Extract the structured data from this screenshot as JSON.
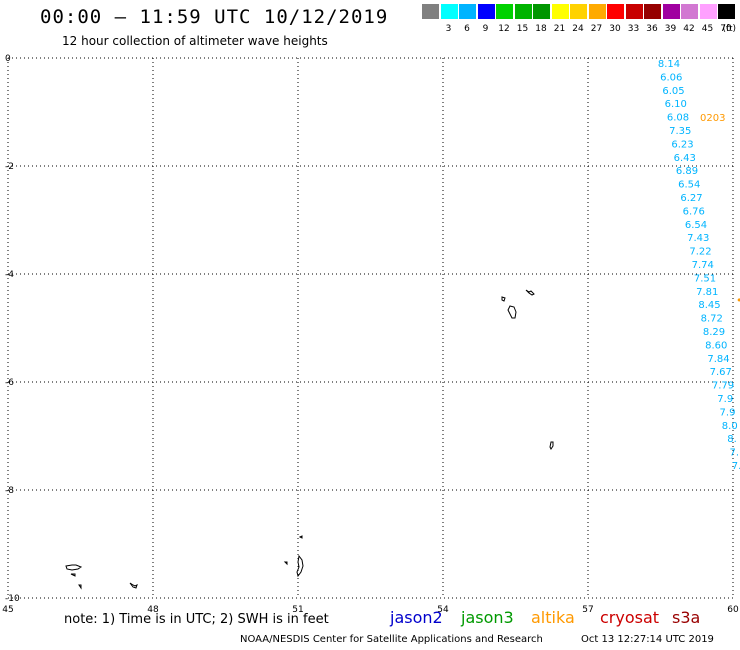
{
  "header": {
    "title": "00:00 – 11:59 UTC 10/12/2019",
    "subtitle": "12 hour collection of altimeter wave heights"
  },
  "color_scale": {
    "unit": "(ft)",
    "items": [
      {
        "label": "",
        "color": "#808080"
      },
      {
        "label": "3",
        "color": "#00ffff"
      },
      {
        "label": "6",
        "color": "#00b4ff"
      },
      {
        "label": "9",
        "color": "#0000ff"
      },
      {
        "label": "12",
        "color": "#00d200"
      },
      {
        "label": "15",
        "color": "#00b400"
      },
      {
        "label": "18",
        "color": "#009600"
      },
      {
        "label": "21",
        "color": "#ffff00"
      },
      {
        "label": "24",
        "color": "#ffd200"
      },
      {
        "label": "27",
        "color": "#ffaa00"
      },
      {
        "label": "30",
        "color": "#ff0000"
      },
      {
        "label": "33",
        "color": "#c80000"
      },
      {
        "label": "36",
        "color": "#960000"
      },
      {
        "label": "39",
        "color": "#a000a0"
      },
      {
        "label": "42",
        "color": "#d278d2"
      },
      {
        "label": "45",
        "color": "#ffa0ff"
      },
      {
        "label": "70",
        "color": "#000000"
      }
    ]
  },
  "map": {
    "lon_range": [
      45,
      60
    ],
    "lat_range": [
      -10,
      0
    ],
    "lon_ticks": [
      "45",
      "48",
      "51",
      "54",
      "57",
      "60"
    ],
    "lat_ticks": [
      "0",
      "-2",
      "-4",
      "-6",
      "-8",
      "-10"
    ],
    "grid": true,
    "grid_color": "#000000"
  },
  "observations": [
    {
      "text": "8.14",
      "color": "#00b4ff"
    },
    {
      "text": "6.06",
      "color": "#00b4ff"
    },
    {
      "text": "6.05",
      "color": "#00b4ff"
    },
    {
      "text": "6.10",
      "color": "#00b4ff"
    },
    {
      "text": "6.08",
      "color": "#00b4ff"
    },
    {
      "text": "7.35",
      "color": "#00b4ff"
    },
    {
      "text": "6.23",
      "color": "#00b4ff"
    },
    {
      "text": "6.43",
      "color": "#00b4ff"
    },
    {
      "text": "6.89",
      "color": "#00b4ff"
    },
    {
      "text": "6.54",
      "color": "#00b4ff"
    },
    {
      "text": "6.27",
      "color": "#00b4ff"
    },
    {
      "text": "6.76",
      "color": "#00b4ff"
    },
    {
      "text": "6.54",
      "color": "#00b4ff"
    },
    {
      "text": "7.43",
      "color": "#00b4ff"
    },
    {
      "text": "7.22",
      "color": "#00b4ff"
    },
    {
      "text": "7.74",
      "color": "#00b4ff"
    },
    {
      "text": "7.51",
      "color": "#00b4ff"
    },
    {
      "text": "7.81",
      "color": "#00b4ff"
    },
    {
      "text": "8.45",
      "color": "#00b4ff"
    },
    {
      "text": "8.72",
      "color": "#00b4ff"
    },
    {
      "text": "8.29",
      "color": "#00b4ff"
    },
    {
      "text": "8.60",
      "color": "#00b4ff"
    },
    {
      "text": "7.84",
      "color": "#00b4ff"
    },
    {
      "text": "7.67",
      "color": "#00b4ff"
    },
    {
      "text": "7.79",
      "color": "#00b4ff"
    },
    {
      "text": "7.9",
      "color": "#00b4ff"
    },
    {
      "text": "7.9",
      "color": "#00b4ff"
    },
    {
      "text": "8.0",
      "color": "#00b4ff"
    },
    {
      "text": "8.",
      "color": "#00b4ff"
    },
    {
      "text": "7.",
      "color": "#00b4ff"
    },
    {
      "text": "7.",
      "color": "#00b4ff"
    }
  ],
  "pass_time": {
    "text": "0203",
    "color": "#ff9900"
  },
  "footer": {
    "note": "note: 1) Time is in UTC; 2) SWH is in feet",
    "satellites": [
      {
        "name": "jason2",
        "color": "#0000cc"
      },
      {
        "name": "jason3",
        "color": "#009900"
      },
      {
        "name": "altika",
        "color": "#ff9900"
      },
      {
        "name": "cryosat",
        "color": "#cc0000"
      },
      {
        "name": "s3a",
        "color": "#990000"
      }
    ],
    "credit": "NOAA/NESDIS Center for Satellite Applications and Research",
    "timestamp": "Oct 13 12:27:14 UTC 2019"
  }
}
